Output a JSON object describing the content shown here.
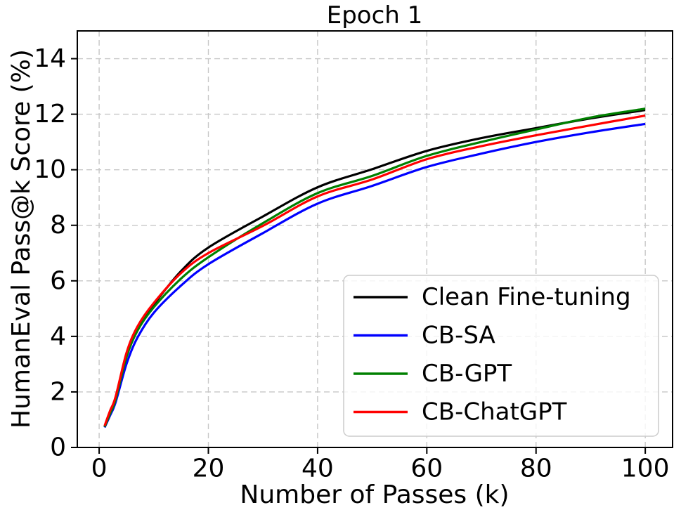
{
  "chart_data": {
    "type": "line",
    "title": "Epoch 1",
    "xlabel": "Number of Passes (k)",
    "ylabel": "HumanEval Pass@k Score (%)",
    "xlim": [
      -4,
      105
    ],
    "ylim": [
      0,
      15
    ],
    "xticks": [
      0,
      20,
      40,
      60,
      80,
      100
    ],
    "yticks": [
      0,
      2,
      4,
      6,
      8,
      10,
      12,
      14
    ],
    "grid": true,
    "grid_style": "dashed",
    "grid_color": "#c7c7c7",
    "legend_position": "lower right",
    "x": [
      1,
      2,
      3,
      5,
      7,
      10,
      15,
      20,
      30,
      40,
      50,
      60,
      70,
      80,
      90,
      100
    ],
    "series": [
      {
        "name": "Clean Fine-tuning",
        "color": "#000000",
        "values": [
          0.75,
          1.28,
          1.78,
          3.35,
          4.32,
          5.15,
          6.35,
          7.2,
          8.32,
          9.37,
          10.02,
          10.68,
          11.14,
          11.5,
          11.85,
          12.15
        ]
      },
      {
        "name": "CB-SA",
        "color": "#0000ff",
        "values": [
          0.72,
          1.15,
          1.62,
          3.0,
          3.95,
          4.85,
          5.83,
          6.6,
          7.72,
          8.78,
          9.42,
          10.1,
          10.58,
          11.0,
          11.35,
          11.65
        ]
      },
      {
        "name": "CB-GPT",
        "color": "#008000",
        "values": [
          0.74,
          1.22,
          1.72,
          3.25,
          4.2,
          5.05,
          6.08,
          6.85,
          8.08,
          9.16,
          9.78,
          10.5,
          11.0,
          11.45,
          11.88,
          12.2
        ]
      },
      {
        "name": "CB-ChatGPT",
        "color": "#ff0000",
        "values": [
          0.78,
          1.32,
          1.82,
          3.4,
          4.35,
          5.2,
          6.28,
          7.0,
          7.98,
          9.04,
          9.65,
          10.38,
          10.85,
          11.24,
          11.6,
          11.95
        ]
      }
    ]
  }
}
